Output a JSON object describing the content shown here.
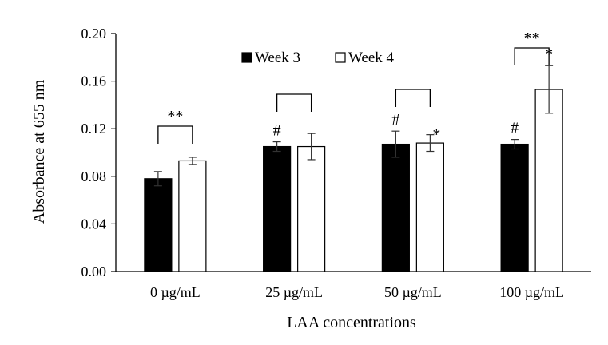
{
  "chart_data": {
    "type": "bar",
    "xlabel": "LAA concentrations",
    "ylabel": "Absorbance at 655 nm",
    "ylim": [
      0,
      0.2
    ],
    "yticks": [
      "0.00",
      "0.04",
      "0.08",
      "0.12",
      "0.16",
      "0.20"
    ],
    "categories": [
      "0 µg/mL",
      "25 µg/mL",
      "50 µg/mL",
      "100 µg/mL"
    ],
    "legend_position": "top-center",
    "grid": false,
    "series": [
      {
        "name": "Week 3",
        "color": "#000000",
        "values": [
          0.078,
          0.105,
          0.107,
          0.107
        ],
        "errors": [
          0.006,
          0.004,
          0.011,
          0.004
        ]
      },
      {
        "name": "Week 4",
        "color": "#ffffff",
        "values": [
          0.093,
          0.105,
          0.108,
          0.153
        ],
        "errors": [
          0.003,
          0.011,
          0.007,
          0.02
        ]
      }
    ],
    "brackets": [
      {
        "category": 0,
        "label": "**"
      },
      {
        "category": 1,
        "label": ""
      },
      {
        "category": 2,
        "label": ""
      },
      {
        "category": 3,
        "label": "**"
      }
    ],
    "bar_marks": [
      {
        "category": 1,
        "series": 0,
        "label": "#"
      },
      {
        "category": 2,
        "series": 0,
        "label": "#"
      },
      {
        "category": 2,
        "series": 1,
        "label": "*"
      },
      {
        "category": 3,
        "series": 0,
        "label": "#"
      },
      {
        "category": 3,
        "series": 1,
        "label": "*"
      }
    ]
  }
}
